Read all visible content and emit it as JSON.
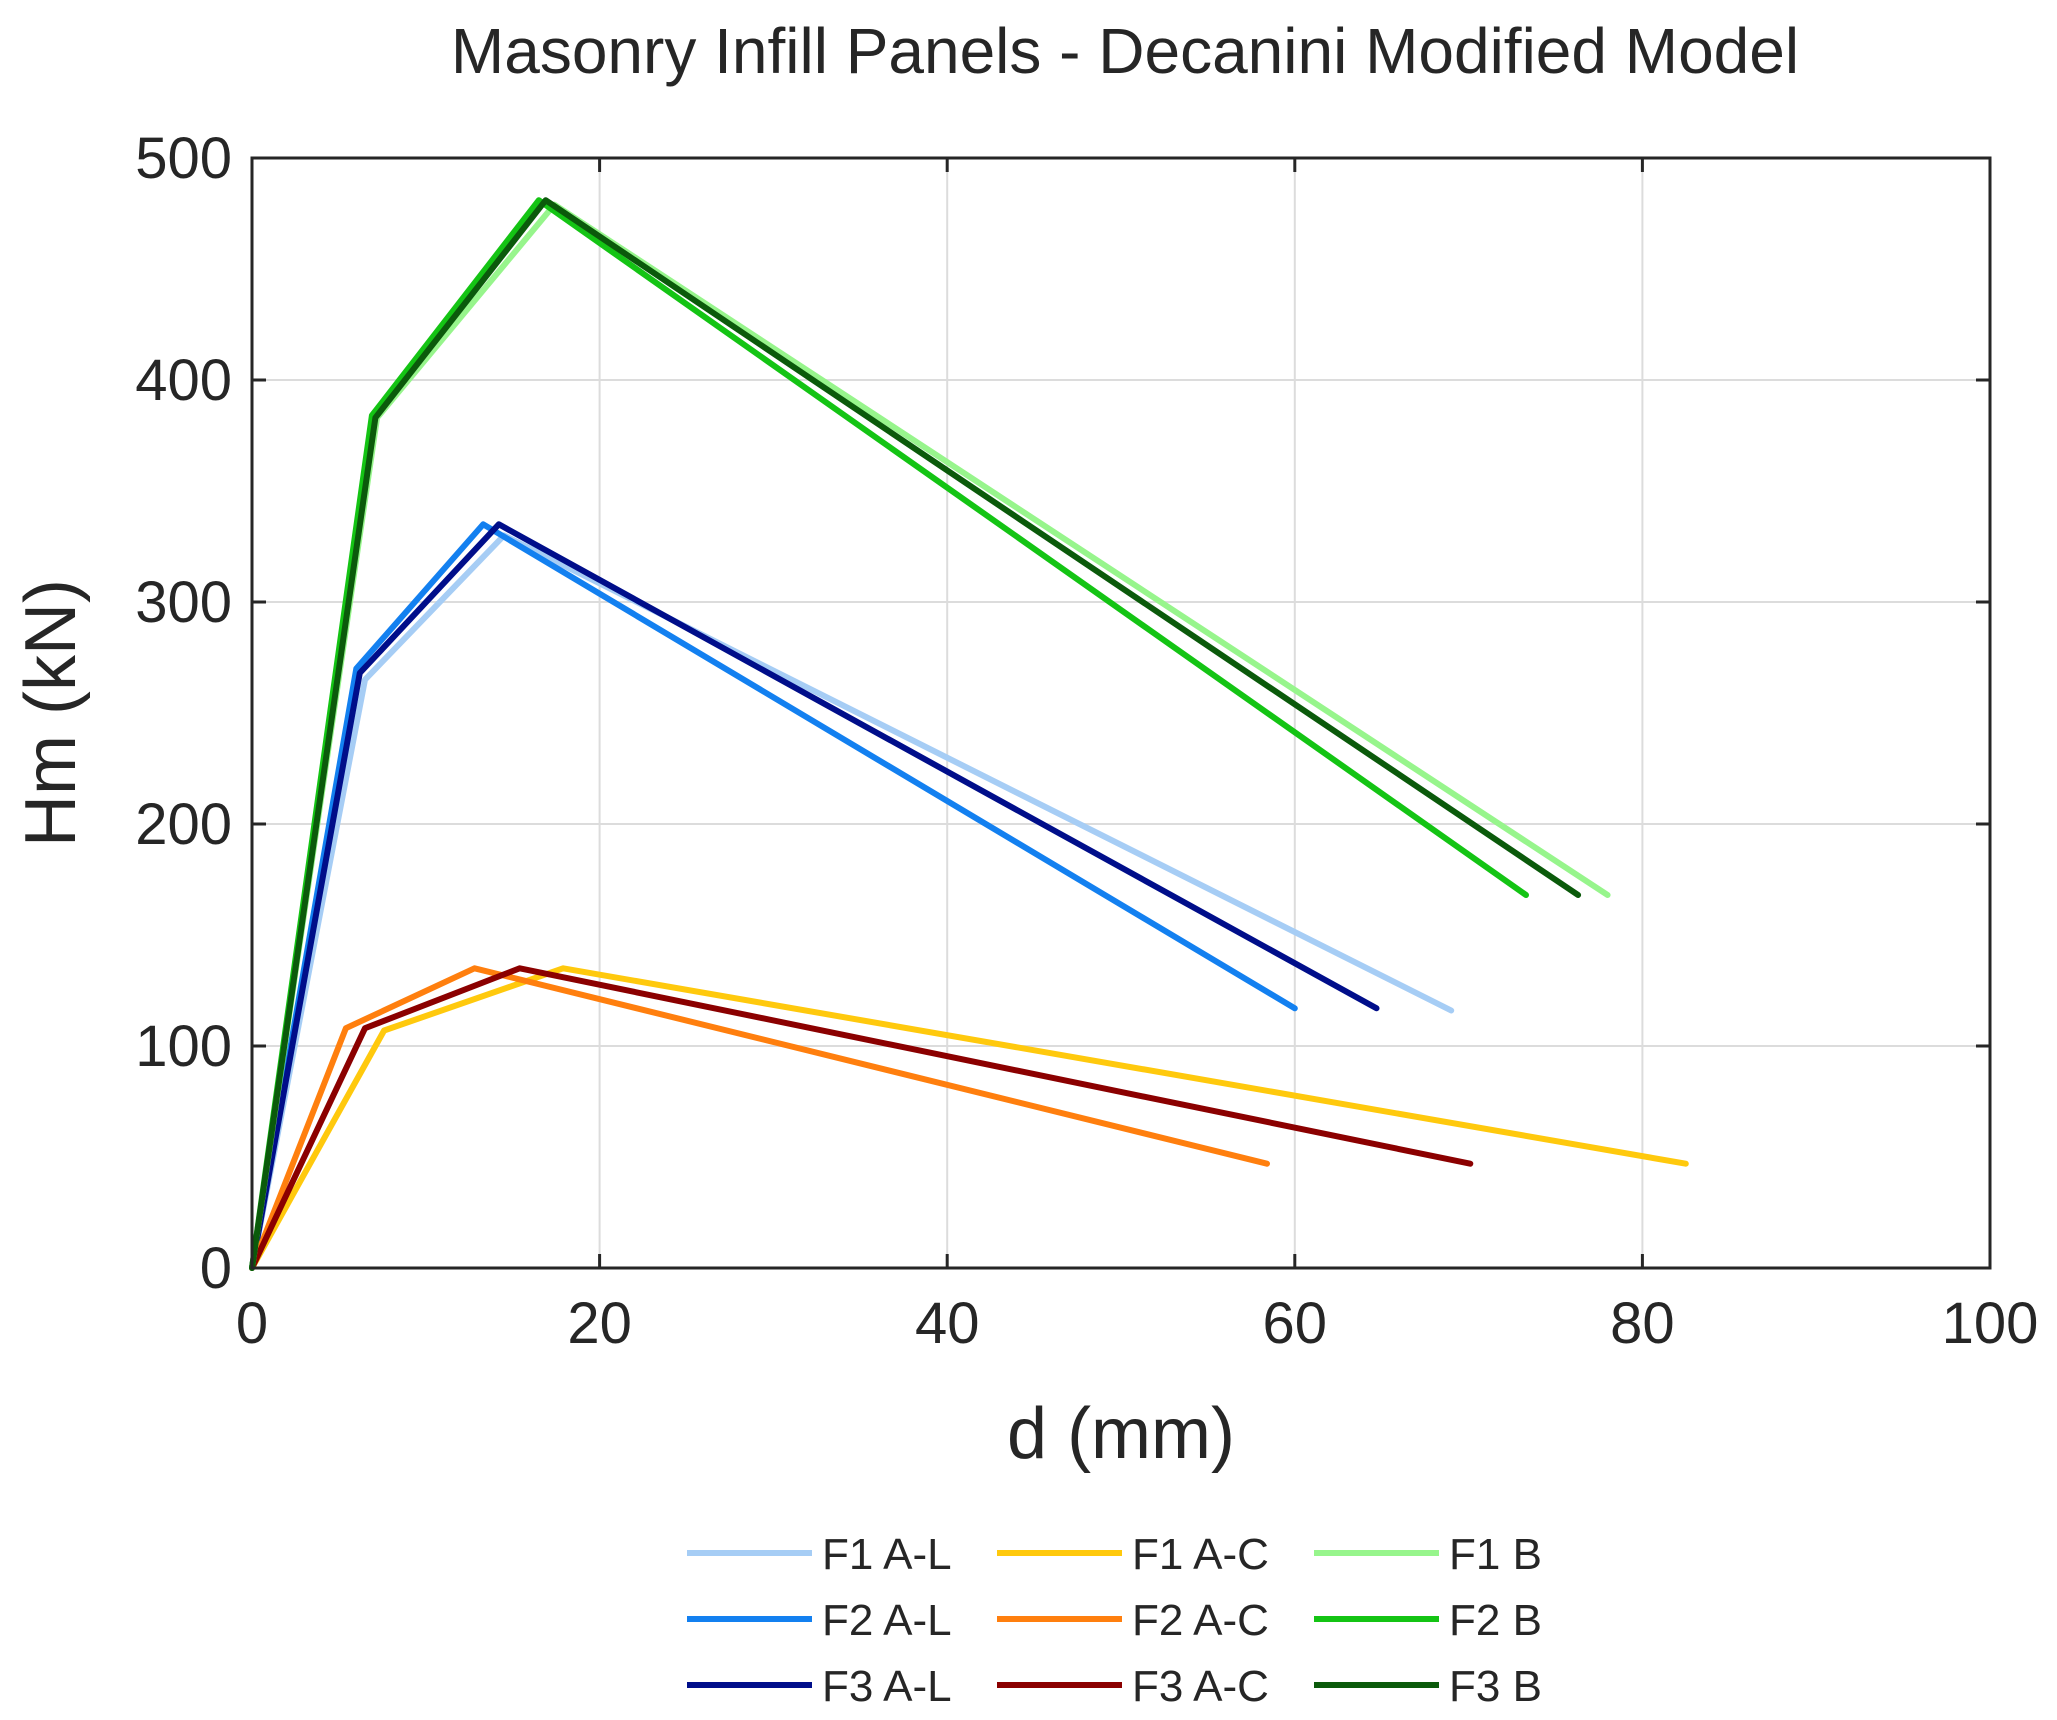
{
  "chart_data": {
    "type": "line",
    "title": "Masonry Infill Panels - Decanini Modified Model",
    "xlabel": "d (mm)",
    "ylabel": "Hm (kN)",
    "xlim": [
      0,
      100
    ],
    "ylim": [
      0,
      500
    ],
    "xticks": [
      0,
      20,
      40,
      60,
      80,
      100
    ],
    "yticks": [
      0,
      100,
      200,
      300,
      400,
      500
    ],
    "xtick_labels": [
      "0",
      "20",
      "40",
      "60",
      "80",
      "100"
    ],
    "ytick_labels": [
      "0",
      "100",
      "200",
      "300",
      "400",
      "500"
    ],
    "grid": true,
    "legend_position": "bottom",
    "series": [
      {
        "name": "F1 A-L",
        "color": "#a6cdf5",
        "x": [
          0,
          6.5,
          14.5,
          69.0
        ],
        "y": [
          0,
          265,
          330,
          116
        ]
      },
      {
        "name": "F2 A-L",
        "color": "#1380f0",
        "x": [
          0,
          6.0,
          13.3,
          60.0
        ],
        "y": [
          0,
          270,
          335,
          117
        ]
      },
      {
        "name": "F3 A-L",
        "color": "#000e8a",
        "x": [
          0,
          6.2,
          14.2,
          64.7
        ],
        "y": [
          0,
          268,
          335,
          117
        ]
      },
      {
        "name": "F1 A-C",
        "color": "#ffc90d",
        "x": [
          0,
          7.6,
          17.9,
          82.5
        ],
        "y": [
          0,
          107,
          135,
          47
        ]
      },
      {
        "name": "F2 A-C",
        "color": "#ff7f0e",
        "x": [
          0,
          5.4,
          12.8,
          58.4
        ],
        "y": [
          0,
          108,
          135,
          47
        ]
      },
      {
        "name": "F3 A-C",
        "color": "#8b0000",
        "x": [
          0,
          6.5,
          15.4,
          70.1
        ],
        "y": [
          0,
          108,
          135,
          47
        ]
      },
      {
        "name": "F1 B",
        "color": "#97f58c",
        "x": [
          0,
          7.2,
          17.4,
          78.0
        ],
        "y": [
          0,
          383,
          479,
          168
        ]
      },
      {
        "name": "F2 B",
        "color": "#14c414",
        "x": [
          0,
          6.9,
          16.5,
          73.3
        ],
        "y": [
          0,
          384,
          481,
          168
        ]
      },
      {
        "name": "F3 B",
        "color": "#0b5a0b",
        "x": [
          0,
          7.1,
          16.9,
          76.3
        ],
        "y": [
          0,
          383,
          481,
          168
        ]
      }
    ]
  },
  "colors": {
    "axis": "#262626",
    "grid": "#dcdcdc",
    "background": "#ffffff"
  }
}
